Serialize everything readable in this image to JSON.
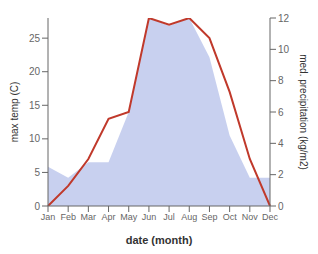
{
  "chart_data": {
    "type": "line",
    "xlabel": "date (month)",
    "ylabel": "max temp (C)",
    "y2label": "med. precipitation (kg/m2)",
    "categories": [
      "Jan",
      "Feb",
      "Mar",
      "Apr",
      "May",
      "Jun",
      "Jul",
      "Aug",
      "Sep",
      "Oct",
      "Nov",
      "Dec"
    ],
    "series": [
      {
        "type": "area",
        "axis": "y2",
        "color": "#b0bce8",
        "values": [
          2.5,
          1.8,
          2.8,
          2.8,
          6.0,
          12.0,
          11.5,
          12.0,
          9.5,
          4.5,
          1.8,
          1.8
        ]
      },
      {
        "type": "line",
        "axis": "y",
        "color": "#c0392b",
        "values": [
          0,
          3,
          7,
          13,
          14,
          28,
          27,
          28,
          25,
          17,
          7,
          0
        ]
      }
    ],
    "ylim": [
      0,
      28
    ],
    "yticks": [
      0,
      5,
      10,
      15,
      20,
      25
    ],
    "y2lim": [
      0,
      12
    ],
    "y2ticks": [
      0,
      2,
      4,
      6,
      8,
      10,
      12
    ],
    "grid": false
  }
}
